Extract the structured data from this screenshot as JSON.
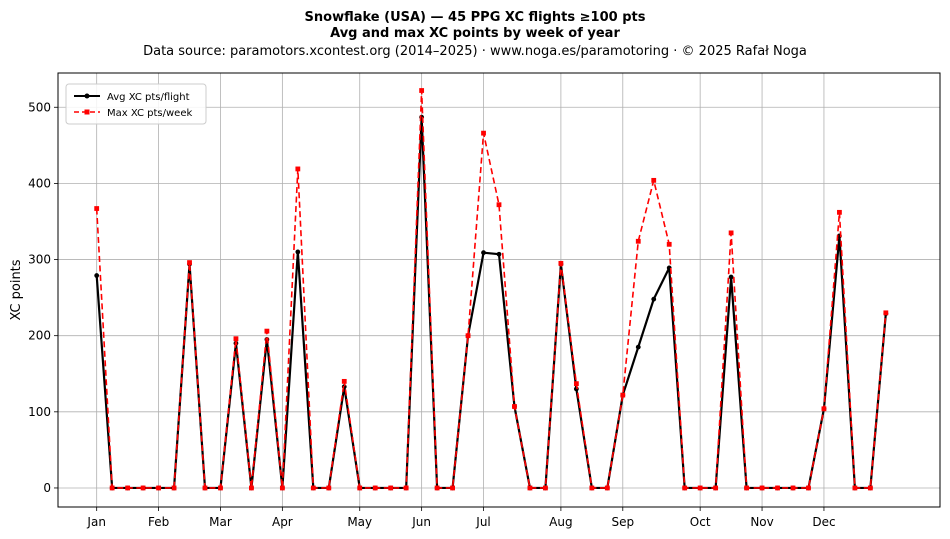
{
  "chart_data": {
    "type": "line",
    "title_line1": "Snowflake (USA)  —  45 PPG XC flights ≥100 pts",
    "title_line2": "Avg and max XC points by week of year",
    "subtitle": "Data source: paramotors.xcontest.org (2014–2025)  ·  www.noga.es/paramotoring  ·  © 2025 Rafał Noga",
    "xlabel": "",
    "ylabel": "XC points",
    "ylim": [
      -25,
      545
    ],
    "xlim": [
      -2.5,
      54.5
    ],
    "yticks": [
      0,
      100,
      200,
      300,
      400,
      500
    ],
    "xticks": [
      {
        "label": "Jan",
        "week": 0
      },
      {
        "label": "Feb",
        "week": 4
      },
      {
        "label": "Mar",
        "week": 8
      },
      {
        "label": "Apr",
        "week": 12
      },
      {
        "label": "May",
        "week": 17
      },
      {
        "label": "Jun",
        "week": 21
      },
      {
        "label": "Jul",
        "week": 25
      },
      {
        "label": "Aug",
        "week": 30
      },
      {
        "label": "Sep",
        "week": 34
      },
      {
        "label": "Oct",
        "week": 39
      },
      {
        "label": "Nov",
        "week": 43
      },
      {
        "label": "Dec",
        "week": 47
      }
    ],
    "grid": true,
    "legend_position": "top-left",
    "x": [
      0,
      1,
      2,
      3,
      4,
      5,
      6,
      7,
      8,
      9,
      10,
      11,
      12,
      13,
      14,
      15,
      16,
      17,
      18,
      19,
      20,
      21,
      22,
      23,
      24,
      25,
      26,
      27,
      28,
      29,
      30,
      31,
      32,
      33,
      34,
      35,
      36,
      37,
      38,
      39,
      40,
      41,
      42,
      43,
      44,
      45,
      46,
      47,
      48,
      49,
      50,
      51
    ],
    "series": [
      {
        "name": "Avg XC pts/flight",
        "color": "#000000",
        "style": "solid",
        "marker": "circle",
        "values": [
          279,
          0,
          0,
          0,
          0,
          0,
          294,
          0,
          0,
          190,
          0,
          195,
          0,
          310,
          0,
          0,
          133,
          0,
          0,
          0,
          0,
          487,
          0,
          0,
          200,
          309,
          307,
          107,
          0,
          0,
          294,
          130,
          0,
          0,
          122,
          185,
          248,
          289,
          0,
          0,
          0,
          277,
          0,
          0,
          0,
          0,
          0,
          104,
          331,
          0,
          0,
          229
        ]
      },
      {
        "name": "Max XC pts/week",
        "color": "#ff0000",
        "style": "dashed",
        "marker": "square",
        "values": [
          367,
          0,
          0,
          0,
          0,
          0,
          296,
          0,
          0,
          196,
          0,
          206,
          0,
          419,
          0,
          0,
          140,
          0,
          0,
          0,
          0,
          522,
          0,
          0,
          200,
          466,
          372,
          107,
          0,
          0,
          295,
          137,
          0,
          0,
          122,
          324,
          404,
          320,
          0,
          0,
          0,
          335,
          0,
          0,
          0,
          0,
          0,
          104,
          362,
          0,
          0,
          230
        ]
      }
    ]
  }
}
